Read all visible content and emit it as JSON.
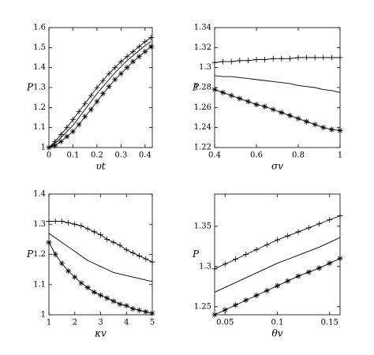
{
  "chart_data": [
    {
      "type": "line",
      "ylabel": "P",
      "xlabel": "υt",
      "x": [
        0,
        0.025,
        0.05,
        0.075,
        0.1,
        0.125,
        0.15,
        0.175,
        0.2,
        0.225,
        0.25,
        0.275,
        0.3,
        0.325,
        0.35,
        0.375,
        0.4,
        0.425
      ],
      "xlim": [
        0,
        0.43
      ],
      "xticks": [
        0,
        0.1,
        0.2,
        0.3,
        0.4
      ],
      "ylim": [
        1,
        1.6
      ],
      "yticks": [
        1,
        1.1,
        1.2,
        1.3,
        1.4,
        1.5,
        1.6
      ],
      "series": [
        {
          "color": "#000000",
          "marker": "+",
          "values": [
            1.0,
            1.03,
            1.065,
            1.1,
            1.14,
            1.18,
            1.22,
            1.26,
            1.3,
            1.335,
            1.37,
            1.4,
            1.43,
            1.455,
            1.48,
            1.505,
            1.53,
            1.55
          ]
        },
        {
          "color": "#000000",
          "marker": "none",
          "values": [
            1.0,
            1.02,
            1.05,
            1.08,
            1.11,
            1.15,
            1.19,
            1.23,
            1.27,
            1.305,
            1.34,
            1.375,
            1.405,
            1.435,
            1.46,
            1.485,
            1.51,
            1.53
          ]
        },
        {
          "color": "#000000",
          "marker": "*",
          "values": [
            1.0,
            1.01,
            1.03,
            1.055,
            1.08,
            1.115,
            1.155,
            1.19,
            1.23,
            1.27,
            1.305,
            1.34,
            1.37,
            1.4,
            1.43,
            1.455,
            1.48,
            1.505
          ]
        }
      ]
    },
    {
      "type": "line",
      "ylabel": "P",
      "xlabel": "σv",
      "x": [
        0.4,
        0.44,
        0.48,
        0.52,
        0.56,
        0.6,
        0.64,
        0.68,
        0.72,
        0.76,
        0.8,
        0.84,
        0.88,
        0.92,
        0.96,
        1.0
      ],
      "xlim": [
        0.4,
        1
      ],
      "xticks": [
        0.4,
        0.6,
        0.8,
        1
      ],
      "ylim": [
        1.22,
        1.34
      ],
      "yticks": [
        1.22,
        1.24,
        1.26,
        1.28,
        1.3,
        1.32,
        1.34
      ],
      "series": [
        {
          "color": "#000000",
          "marker": "+",
          "values": [
            1.305,
            1.306,
            1.306,
            1.307,
            1.307,
            1.308,
            1.308,
            1.309,
            1.309,
            1.309,
            1.31,
            1.31,
            1.31,
            1.31,
            1.31,
            1.31
          ]
        },
        {
          "color": "#000000",
          "marker": "none",
          "values": [
            1.292,
            1.291,
            1.291,
            1.29,
            1.289,
            1.288,
            1.287,
            1.286,
            1.285,
            1.284,
            1.282,
            1.281,
            1.28,
            1.278,
            1.277,
            1.275
          ]
        },
        {
          "color": "#000000",
          "marker": "*",
          "values": [
            1.278,
            1.275,
            1.272,
            1.269,
            1.266,
            1.263,
            1.261,
            1.258,
            1.255,
            1.252,
            1.249,
            1.246,
            1.243,
            1.24,
            1.238,
            1.237
          ]
        }
      ]
    },
    {
      "type": "line",
      "ylabel": "P",
      "xlabel": "κv",
      "x": [
        1,
        1.25,
        1.5,
        1.75,
        2,
        2.25,
        2.5,
        2.75,
        3,
        3.25,
        3.5,
        3.75,
        4,
        4.25,
        4.5,
        4.75,
        5
      ],
      "xlim": [
        1,
        5
      ],
      "xticks": [
        1,
        2,
        3,
        4,
        5
      ],
      "ylim": [
        1,
        1.4
      ],
      "yticks": [
        1,
        1.1,
        1.2,
        1.3,
        1.4
      ],
      "series": [
        {
          "color": "#000000",
          "marker": "+",
          "values": [
            1.31,
            1.31,
            1.31,
            1.305,
            1.3,
            1.295,
            1.285,
            1.275,
            1.265,
            1.25,
            1.24,
            1.23,
            1.215,
            1.205,
            1.195,
            1.185,
            1.175
          ]
        },
        {
          "color": "#000000",
          "marker": "none",
          "values": [
            1.27,
            1.255,
            1.24,
            1.225,
            1.21,
            1.195,
            1.18,
            1.17,
            1.16,
            1.15,
            1.14,
            1.135,
            1.13,
            1.125,
            1.12,
            1.115,
            1.11
          ]
        },
        {
          "color": "#000000",
          "marker": "*",
          "values": [
            1.24,
            1.2,
            1.17,
            1.145,
            1.125,
            1.105,
            1.09,
            1.075,
            1.065,
            1.055,
            1.045,
            1.035,
            1.03,
            1.02,
            1.015,
            1.01,
            1.005
          ]
        }
      ]
    },
    {
      "type": "line",
      "ylabel": "P",
      "xlabel": "θv",
      "x": [
        0.04,
        0.05,
        0.06,
        0.07,
        0.08,
        0.09,
        0.1,
        0.11,
        0.12,
        0.13,
        0.14,
        0.15,
        0.16
      ],
      "xlim": [
        0.04,
        0.16
      ],
      "xticks": [
        0.05,
        0.1,
        0.15
      ],
      "ylim": [
        1.24,
        1.39
      ],
      "yticks": [
        1.25,
        1.3,
        1.35
      ],
      "series": [
        {
          "color": "#000000",
          "marker": "+",
          "values": [
            1.297,
            1.303,
            1.309,
            1.315,
            1.321,
            1.327,
            1.333,
            1.338,
            1.343,
            1.348,
            1.353,
            1.358,
            1.363
          ]
        },
        {
          "color": "#000000",
          "marker": "none",
          "values": [
            1.268,
            1.274,
            1.28,
            1.286,
            1.292,
            1.298,
            1.304,
            1.309,
            1.314,
            1.319,
            1.324,
            1.33,
            1.336
          ]
        },
        {
          "color": "#000000",
          "marker": "*",
          "values": [
            1.24,
            1.246,
            1.252,
            1.258,
            1.264,
            1.27,
            1.276,
            1.282,
            1.288,
            1.293,
            1.298,
            1.304,
            1.31
          ]
        }
      ]
    }
  ]
}
